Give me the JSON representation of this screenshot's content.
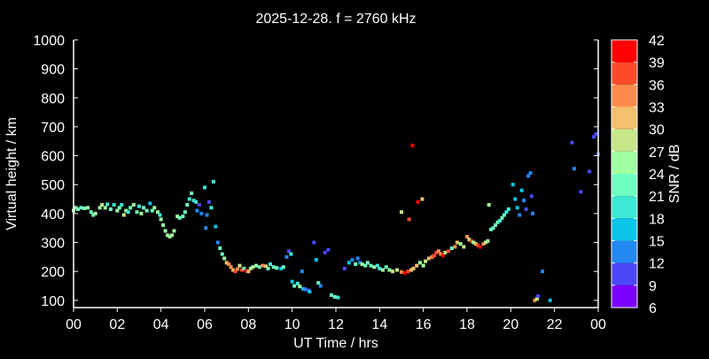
{
  "chart_data": {
    "type": "scatter",
    "title": "2025-12-28. f = 2760 kHz",
    "xlabel": "UT Time / hrs",
    "ylabel": "Virtual height / km",
    "xlim": [
      0,
      24
    ],
    "ylim": [
      75,
      1000
    ],
    "xticks": [
      "00",
      "02",
      "04",
      "06",
      "08",
      "10",
      "12",
      "14",
      "16",
      "18",
      "20",
      "22",
      "00"
    ],
    "yticks": [
      100,
      200,
      300,
      400,
      500,
      600,
      700,
      800,
      900,
      1000
    ],
    "grid": false,
    "colorbar": {
      "label": "SNR / dB",
      "ticks": [
        6,
        9,
        12,
        15,
        18,
        21,
        24,
        27,
        30,
        33,
        36,
        39,
        42
      ],
      "colors": [
        "#7a00ff",
        "#4c48f8",
        "#2288f2",
        "#0cc4e8",
        "#3de8d4",
        "#6effc0",
        "#9effa0",
        "#c8e68a",
        "#f2c06e",
        "#ff8c4e",
        "#ff4a2a",
        "#ff0000"
      ]
    },
    "points": [
      [
        0.0,
        410,
        24
      ],
      [
        0.1,
        420,
        25
      ],
      [
        0.2,
        415,
        22
      ],
      [
        0.35,
        420,
        23
      ],
      [
        0.5,
        418,
        21
      ],
      [
        0.65,
        420,
        24
      ],
      [
        0.8,
        405,
        22
      ],
      [
        0.9,
        395,
        23
      ],
      [
        1.0,
        400,
        26
      ],
      [
        1.2,
        420,
        25
      ],
      [
        1.3,
        430,
        28
      ],
      [
        1.45,
        420,
        24
      ],
      [
        1.55,
        432,
        19
      ],
      [
        1.7,
        415,
        21
      ],
      [
        1.85,
        430,
        20
      ],
      [
        2.0,
        410,
        24
      ],
      [
        2.1,
        420,
        22
      ],
      [
        2.2,
        430,
        20
      ],
      [
        2.3,
        395,
        27
      ],
      [
        2.4,
        410,
        25
      ],
      [
        2.5,
        405,
        18
      ],
      [
        2.6,
        420,
        21
      ],
      [
        2.75,
        430,
        26
      ],
      [
        2.9,
        405,
        22
      ],
      [
        3.0,
        425,
        20
      ],
      [
        3.1,
        400,
        25
      ],
      [
        3.2,
        420,
        22
      ],
      [
        3.35,
        410,
        23
      ],
      [
        3.5,
        435,
        17
      ],
      [
        3.6,
        410,
        21
      ],
      [
        3.7,
        420,
        24
      ],
      [
        3.85,
        405,
        25
      ],
      [
        3.95,
        395,
        20
      ],
      [
        4.0,
        380,
        25
      ],
      [
        4.1,
        360,
        26
      ],
      [
        4.2,
        340,
        26
      ],
      [
        4.3,
        325,
        25
      ],
      [
        4.4,
        320,
        24
      ],
      [
        4.5,
        325,
        25
      ],
      [
        4.6,
        340,
        26
      ],
      [
        4.75,
        390,
        24
      ],
      [
        4.85,
        385,
        23
      ],
      [
        5.0,
        390,
        23
      ],
      [
        5.1,
        405,
        22
      ],
      [
        5.2,
        430,
        21
      ],
      [
        5.3,
        450,
        20
      ],
      [
        5.4,
        470,
        22
      ],
      [
        5.5,
        445,
        19
      ],
      [
        5.6,
        440,
        18
      ],
      [
        5.65,
        410,
        14
      ],
      [
        5.75,
        430,
        10
      ],
      [
        5.85,
        400,
        14
      ],
      [
        6.0,
        490,
        20
      ],
      [
        6.05,
        350,
        13
      ],
      [
        6.1,
        395,
        13
      ],
      [
        6.2,
        440,
        9
      ],
      [
        6.3,
        420,
        19
      ],
      [
        6.4,
        510,
        20
      ],
      [
        6.5,
        355,
        17
      ],
      [
        6.6,
        300,
        14
      ],
      [
        6.7,
        280,
        21
      ],
      [
        6.8,
        260,
        23
      ],
      [
        6.9,
        245,
        24
      ],
      [
        7.0,
        230,
        31
      ],
      [
        7.1,
        225,
        33
      ],
      [
        7.2,
        215,
        35
      ],
      [
        7.3,
        205,
        30
      ],
      [
        7.4,
        200,
        37
      ],
      [
        7.5,
        208,
        33
      ],
      [
        7.6,
        220,
        28
      ],
      [
        7.7,
        205,
        38
      ],
      [
        7.8,
        210,
        21
      ],
      [
        7.9,
        202,
        40
      ],
      [
        8.0,
        200,
        31
      ],
      [
        8.1,
        210,
        29
      ],
      [
        8.2,
        215,
        25
      ],
      [
        8.35,
        220,
        24
      ],
      [
        8.5,
        215,
        23
      ],
      [
        8.65,
        220,
        35
      ],
      [
        8.8,
        218,
        30
      ],
      [
        8.9,
        210,
        22
      ],
      [
        9.0,
        225,
        20
      ],
      [
        9.15,
        215,
        21
      ],
      [
        9.3,
        212,
        23
      ],
      [
        9.5,
        210,
        17
      ],
      [
        9.6,
        215,
        21
      ],
      [
        9.75,
        250,
        13
      ],
      [
        9.85,
        270,
        10
      ],
      [
        9.95,
        260,
        20
      ],
      [
        10.0,
        165,
        16
      ],
      [
        10.1,
        150,
        22
      ],
      [
        10.25,
        158,
        20
      ],
      [
        10.35,
        148,
        26
      ],
      [
        10.5,
        140,
        17
      ],
      [
        10.6,
        138,
        13
      ],
      [
        10.75,
        135,
        9
      ],
      [
        10.8,
        130,
        16
      ],
      [
        10.45,
        200,
        14
      ],
      [
        11.0,
        300,
        10
      ],
      [
        11.1,
        240,
        17
      ],
      [
        11.2,
        160,
        22
      ],
      [
        11.3,
        150,
        14
      ],
      [
        11.5,
        265,
        10
      ],
      [
        11.65,
        275,
        10
      ],
      [
        11.8,
        118,
        23
      ],
      [
        11.95,
        112,
        22
      ],
      [
        12.1,
        110,
        20
      ],
      [
        12.4,
        210,
        11
      ],
      [
        12.6,
        230,
        17
      ],
      [
        12.75,
        240,
        13
      ],
      [
        12.9,
        225,
        21
      ],
      [
        13.0,
        245,
        12
      ],
      [
        13.1,
        230,
        14
      ],
      [
        13.2,
        225,
        26
      ],
      [
        13.35,
        220,
        21
      ],
      [
        13.45,
        230,
        21
      ],
      [
        13.6,
        220,
        21
      ],
      [
        13.75,
        215,
        24
      ],
      [
        13.9,
        220,
        18
      ],
      [
        14.0,
        210,
        19
      ],
      [
        14.15,
        205,
        24
      ],
      [
        14.3,
        215,
        22
      ],
      [
        14.45,
        205,
        26
      ],
      [
        14.6,
        200,
        28
      ],
      [
        14.8,
        205,
        29
      ],
      [
        15.0,
        198,
        34
      ],
      [
        15.15,
        195,
        39
      ],
      [
        15.3,
        200,
        36
      ],
      [
        15.45,
        205,
        32
      ],
      [
        15.0,
        405,
        27
      ],
      [
        15.35,
        380,
        38
      ],
      [
        15.5,
        635,
        39
      ],
      [
        15.75,
        440,
        42
      ],
      [
        15.95,
        450,
        32
      ],
      [
        15.55,
        210,
        30
      ],
      [
        15.7,
        220,
        31
      ],
      [
        15.85,
        230,
        24
      ],
      [
        16.0,
        220,
        24
      ],
      [
        16.1,
        235,
        28
      ],
      [
        16.25,
        245,
        31
      ],
      [
        16.4,
        250,
        33
      ],
      [
        16.5,
        255,
        38
      ],
      [
        16.6,
        265,
        36
      ],
      [
        16.7,
        270,
        35
      ],
      [
        16.8,
        260,
        33
      ],
      [
        16.9,
        255,
        42
      ],
      [
        17.0,
        265,
        27
      ],
      [
        17.15,
        270,
        37
      ],
      [
        17.3,
        280,
        23
      ],
      [
        17.45,
        285,
        34
      ],
      [
        17.55,
        300,
        31
      ],
      [
        17.7,
        295,
        24
      ],
      [
        17.85,
        285,
        29
      ],
      [
        18.0,
        320,
        34
      ],
      [
        18.1,
        310,
        29
      ],
      [
        18.2,
        305,
        37
      ],
      [
        18.3,
        300,
        24
      ],
      [
        18.4,
        295,
        30
      ],
      [
        18.5,
        290,
        36
      ],
      [
        18.6,
        285,
        39
      ],
      [
        18.75,
        295,
        33
      ],
      [
        18.85,
        300,
        27
      ],
      [
        18.95,
        305,
        25
      ],
      [
        19.1,
        345,
        22
      ],
      [
        19.2,
        350,
        22
      ],
      [
        19.3,
        360,
        23
      ],
      [
        19.4,
        370,
        21
      ],
      [
        19.5,
        375,
        20
      ],
      [
        19.6,
        385,
        22
      ],
      [
        19.7,
        395,
        21
      ],
      [
        19.8,
        405,
        19
      ],
      [
        19.9,
        415,
        18
      ],
      [
        19.0,
        430,
        26
      ],
      [
        20.1,
        500,
        17
      ],
      [
        20.2,
        450,
        16
      ],
      [
        20.3,
        420,
        15
      ],
      [
        20.4,
        395,
        14
      ],
      [
        20.5,
        480,
        16
      ],
      [
        20.6,
        445,
        14
      ],
      [
        20.7,
        415,
        11
      ],
      [
        20.8,
        530,
        12
      ],
      [
        20.9,
        540,
        12
      ],
      [
        20.95,
        460,
        10
      ],
      [
        21.0,
        400,
        13
      ],
      [
        21.1,
        100,
        33
      ],
      [
        21.2,
        105,
        28
      ],
      [
        21.25,
        115,
        11
      ],
      [
        21.45,
        200,
        12
      ],
      [
        21.8,
        100,
        17
      ],
      [
        22.8,
        645,
        10
      ],
      [
        22.9,
        555,
        12
      ],
      [
        23.2,
        475,
        11
      ],
      [
        23.6,
        545,
        10
      ],
      [
        23.8,
        665,
        10
      ],
      [
        23.9,
        675,
        10
      ],
      [
        24.0,
        605,
        10
      ]
    ]
  }
}
